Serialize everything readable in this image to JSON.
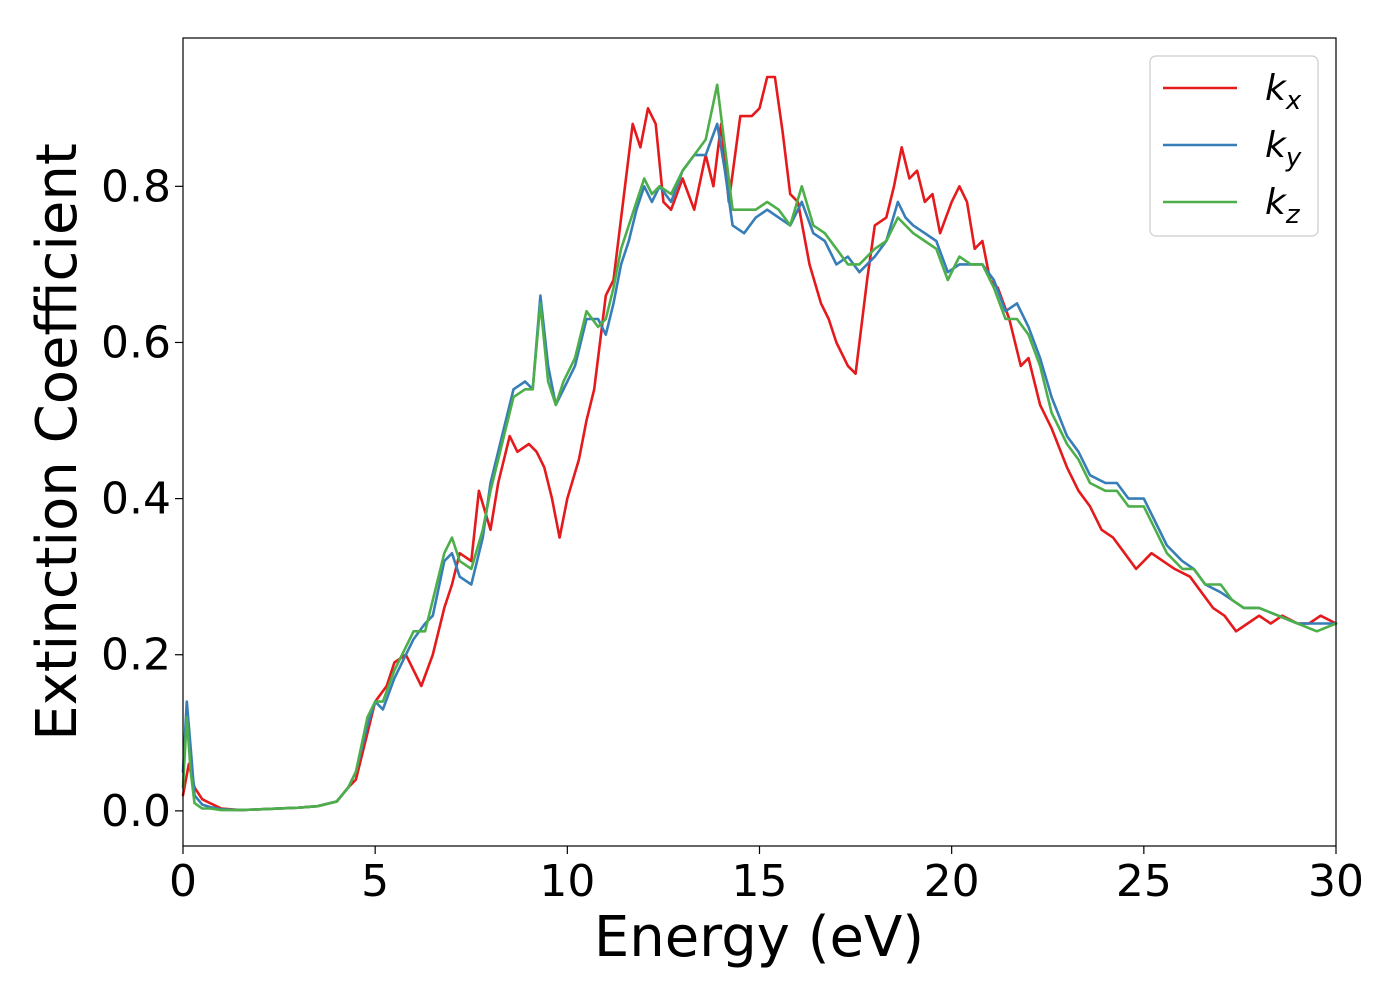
{
  "chart_data": {
    "type": "line",
    "title": "",
    "xlabel": "Energy (eV)",
    "ylabel": "Extinction Coefficient",
    "xlim": [
      0,
      30
    ],
    "ylim": [
      -0.045,
      0.99
    ],
    "xticks": [
      0,
      5,
      10,
      15,
      20,
      25,
      30
    ],
    "xtick_labels": [
      "0",
      "5",
      "10",
      "15",
      "20",
      "25",
      "30"
    ],
    "yticks": [
      0.0,
      0.2,
      0.4,
      0.6,
      0.8
    ],
    "ytick_labels": [
      "0.0",
      "0.2",
      "0.4",
      "0.6",
      "0.8"
    ],
    "grid": false,
    "legend_position": "top-right",
    "series": [
      {
        "name": "k",
        "subscript": "x",
        "color": "#e41a1c",
        "x": [
          0,
          0.15,
          0.3,
          0.5,
          0.7,
          1.0,
          1.5,
          2,
          3,
          3.5,
          4,
          4.3,
          4.5,
          4.8,
          5.0,
          5.3,
          5.5,
          5.8,
          6.0,
          6.2,
          6.5,
          6.8,
          7.0,
          7.2,
          7.5,
          7.7,
          8.0,
          8.2,
          8.5,
          8.7,
          9.0,
          9.2,
          9.4,
          9.6,
          9.8,
          10.0,
          10.3,
          10.5,
          10.7,
          11.0,
          11.2,
          11.5,
          11.7,
          11.9,
          12.1,
          12.3,
          12.5,
          12.7,
          13.0,
          13.3,
          13.6,
          13.8,
          14.0,
          14.2,
          14.5,
          14.8,
          15.0,
          15.2,
          15.4,
          15.6,
          15.8,
          16.0,
          16.3,
          16.6,
          16.8,
          17.0,
          17.3,
          17.5,
          17.8,
          18.0,
          18.3,
          18.5,
          18.7,
          18.9,
          19.1,
          19.3,
          19.5,
          19.7,
          20.0,
          20.2,
          20.4,
          20.6,
          20.8,
          21.0,
          21.2,
          21.5,
          21.8,
          22.0,
          22.3,
          22.6,
          23.0,
          23.3,
          23.6,
          23.9,
          24.2,
          24.5,
          24.8,
          25.2,
          25.5,
          25.8,
          26.2,
          26.5,
          26.8,
          27.1,
          27.4,
          27.7,
          28.0,
          28.3,
          28.6,
          29.0,
          29.3,
          29.6,
          30.0
        ],
        "y": [
          0.02,
          0.06,
          0.03,
          0.015,
          0.01,
          0.003,
          0.001,
          0.002,
          0.004,
          0.006,
          0.012,
          0.03,
          0.04,
          0.1,
          0.14,
          0.16,
          0.19,
          0.2,
          0.18,
          0.16,
          0.2,
          0.26,
          0.29,
          0.33,
          0.32,
          0.41,
          0.36,
          0.42,
          0.48,
          0.46,
          0.47,
          0.46,
          0.44,
          0.4,
          0.35,
          0.4,
          0.45,
          0.5,
          0.54,
          0.66,
          0.68,
          0.8,
          0.88,
          0.85,
          0.9,
          0.88,
          0.78,
          0.77,
          0.81,
          0.77,
          0.84,
          0.8,
          0.88,
          0.78,
          0.89,
          0.89,
          0.9,
          0.94,
          0.94,
          0.87,
          0.79,
          0.78,
          0.7,
          0.65,
          0.63,
          0.6,
          0.57,
          0.56,
          0.68,
          0.75,
          0.76,
          0.8,
          0.85,
          0.81,
          0.82,
          0.78,
          0.79,
          0.74,
          0.78,
          0.8,
          0.78,
          0.72,
          0.73,
          0.68,
          0.67,
          0.63,
          0.57,
          0.58,
          0.52,
          0.49,
          0.44,
          0.41,
          0.39,
          0.36,
          0.35,
          0.33,
          0.31,
          0.33,
          0.32,
          0.31,
          0.3,
          0.28,
          0.26,
          0.25,
          0.23,
          0.24,
          0.25,
          0.24,
          0.25,
          0.24,
          0.24,
          0.25,
          0.24
        ]
      },
      {
        "name": "k",
        "subscript": "y",
        "color": "#377eb8",
        "x": [
          0,
          0.1,
          0.2,
          0.3,
          0.5,
          0.7,
          1.0,
          1.5,
          2,
          3,
          3.5,
          4,
          4.3,
          4.5,
          4.8,
          5.0,
          5.2,
          5.5,
          5.8,
          6.0,
          6.3,
          6.5,
          6.8,
          7.0,
          7.2,
          7.5,
          7.8,
          8.0,
          8.3,
          8.6,
          8.9,
          9.1,
          9.3,
          9.5,
          9.7,
          9.9,
          10.2,
          10.5,
          10.8,
          11.0,
          11.2,
          11.4,
          11.6,
          11.8,
          12.0,
          12.2,
          12.4,
          12.7,
          13.0,
          13.3,
          13.6,
          13.9,
          14.1,
          14.3,
          14.6,
          14.9,
          15.2,
          15.5,
          15.8,
          16.1,
          16.4,
          16.7,
          17.0,
          17.3,
          17.6,
          18.0,
          18.3,
          18.6,
          18.8,
          19.0,
          19.3,
          19.6,
          19.9,
          20.2,
          20.5,
          20.8,
          21.1,
          21.4,
          21.7,
          22.0,
          22.3,
          22.6,
          23.0,
          23.3,
          23.6,
          24.0,
          24.3,
          24.6,
          25.0,
          25.3,
          25.6,
          26.0,
          26.3,
          26.6,
          27.0,
          27.3,
          27.6,
          28.0,
          28.5,
          29.0,
          29.5,
          30.0
        ],
        "y": [
          0.05,
          0.14,
          0.08,
          0.02,
          0.008,
          0.005,
          0.002,
          0.001,
          0.002,
          0.004,
          0.006,
          0.012,
          0.03,
          0.05,
          0.11,
          0.14,
          0.13,
          0.17,
          0.2,
          0.22,
          0.24,
          0.25,
          0.32,
          0.33,
          0.3,
          0.29,
          0.35,
          0.42,
          0.48,
          0.54,
          0.55,
          0.54,
          0.66,
          0.57,
          0.52,
          0.54,
          0.57,
          0.63,
          0.63,
          0.61,
          0.65,
          0.7,
          0.73,
          0.77,
          0.8,
          0.78,
          0.8,
          0.78,
          0.82,
          0.84,
          0.84,
          0.88,
          0.82,
          0.75,
          0.74,
          0.76,
          0.77,
          0.76,
          0.75,
          0.78,
          0.74,
          0.73,
          0.7,
          0.71,
          0.69,
          0.71,
          0.73,
          0.78,
          0.76,
          0.75,
          0.74,
          0.73,
          0.69,
          0.7,
          0.7,
          0.7,
          0.68,
          0.64,
          0.65,
          0.62,
          0.58,
          0.53,
          0.48,
          0.46,
          0.43,
          0.42,
          0.42,
          0.4,
          0.4,
          0.37,
          0.34,
          0.32,
          0.31,
          0.29,
          0.28,
          0.27,
          0.26,
          0.26,
          0.25,
          0.24,
          0.24,
          0.24
        ]
      },
      {
        "name": "k",
        "subscript": "z",
        "color": "#4daf4a",
        "x": [
          0,
          0.1,
          0.2,
          0.3,
          0.5,
          0.7,
          1.0,
          1.5,
          2,
          3,
          3.5,
          4,
          4.3,
          4.5,
          4.8,
          5.0,
          5.2,
          5.5,
          5.8,
          6.0,
          6.3,
          6.5,
          6.8,
          7.0,
          7.2,
          7.5,
          7.8,
          8.0,
          8.3,
          8.6,
          8.9,
          9.1,
          9.3,
          9.5,
          9.7,
          9.9,
          10.2,
          10.5,
          10.8,
          11.0,
          11.2,
          11.4,
          11.6,
          11.8,
          12.0,
          12.2,
          12.4,
          12.7,
          13.0,
          13.3,
          13.6,
          13.9,
          14.1,
          14.3,
          14.6,
          14.9,
          15.2,
          15.5,
          15.8,
          16.1,
          16.4,
          16.7,
          17.0,
          17.3,
          17.6,
          18.0,
          18.3,
          18.6,
          18.8,
          19.0,
          19.3,
          19.6,
          19.9,
          20.2,
          20.5,
          20.8,
          21.1,
          21.4,
          21.7,
          22.0,
          22.3,
          22.6,
          23.0,
          23.3,
          23.6,
          24.0,
          24.3,
          24.6,
          25.0,
          25.3,
          25.6,
          26.0,
          26.3,
          26.6,
          27.0,
          27.3,
          27.6,
          28.0,
          28.5,
          29.0,
          29.5,
          30.0
        ],
        "y": [
          0.03,
          0.12,
          0.05,
          0.01,
          0.003,
          0.003,
          0.001,
          0.001,
          0.002,
          0.004,
          0.006,
          0.012,
          0.03,
          0.05,
          0.12,
          0.14,
          0.14,
          0.18,
          0.21,
          0.23,
          0.23,
          0.27,
          0.33,
          0.35,
          0.32,
          0.31,
          0.36,
          0.41,
          0.47,
          0.53,
          0.54,
          0.54,
          0.65,
          0.55,
          0.52,
          0.55,
          0.58,
          0.64,
          0.62,
          0.63,
          0.67,
          0.72,
          0.75,
          0.78,
          0.81,
          0.79,
          0.8,
          0.79,
          0.82,
          0.84,
          0.86,
          0.93,
          0.85,
          0.77,
          0.77,
          0.77,
          0.78,
          0.77,
          0.75,
          0.8,
          0.75,
          0.74,
          0.72,
          0.7,
          0.7,
          0.72,
          0.73,
          0.76,
          0.75,
          0.74,
          0.73,
          0.72,
          0.68,
          0.71,
          0.7,
          0.7,
          0.67,
          0.63,
          0.63,
          0.61,
          0.57,
          0.51,
          0.47,
          0.45,
          0.42,
          0.41,
          0.41,
          0.39,
          0.39,
          0.36,
          0.33,
          0.31,
          0.31,
          0.29,
          0.29,
          0.27,
          0.26,
          0.26,
          0.25,
          0.24,
          0.23,
          0.24
        ]
      }
    ]
  }
}
